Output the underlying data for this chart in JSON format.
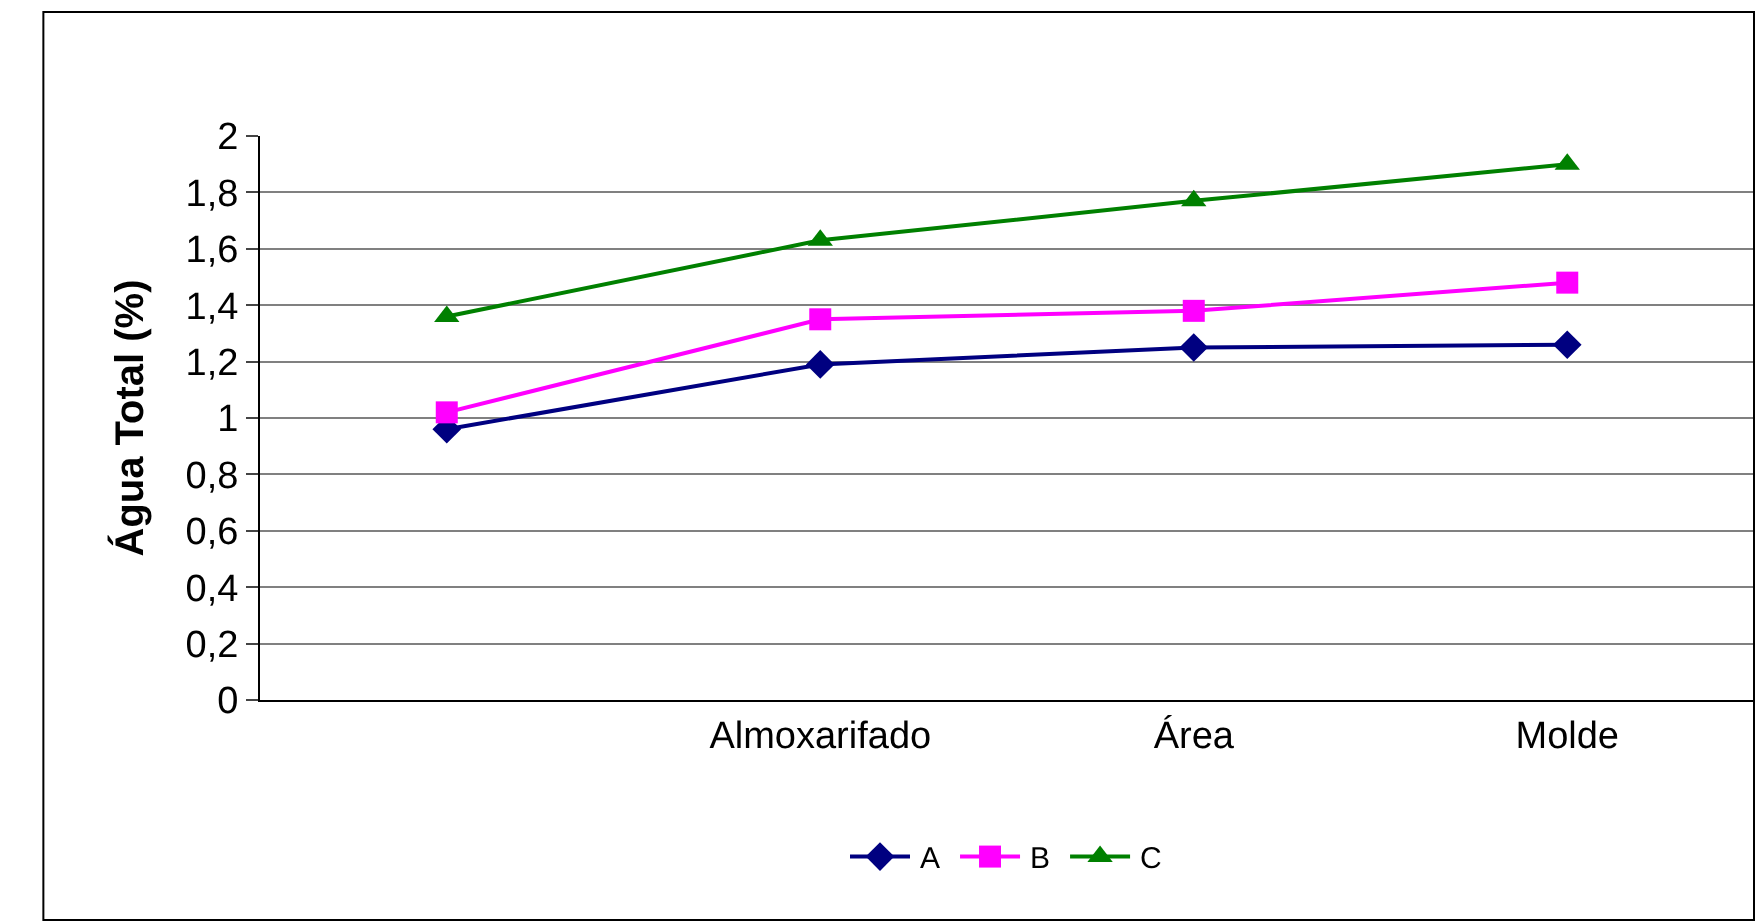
{
  "chart_data": {
    "type": "line",
    "ylabel": "Água Total (%)",
    "categories": [
      null,
      "Almoxarifado",
      "Área",
      "Molde"
    ],
    "series": [
      {
        "name": "A",
        "color": "#000080",
        "marker": "diamond",
        "values": [
          0.96,
          1.19,
          1.25,
          1.26
        ]
      },
      {
        "name": "B",
        "color": "#ff00ff",
        "marker": "square",
        "values": [
          1.02,
          1.35,
          1.38,
          1.48
        ]
      },
      {
        "name": "C",
        "color": "#008000",
        "marker": "triangle",
        "values": [
          1.36,
          1.63,
          1.77,
          1.9
        ]
      }
    ],
    "ylim": [
      0,
      2
    ],
    "yticks": [
      0,
      {
        "value": 0.2,
        "label": "0,2"
      },
      {
        "value": 0.4,
        "label": "0,4"
      },
      {
        "value": 0.6,
        "label": "0,6"
      },
      {
        "value": 0.8,
        "label": "0,8"
      },
      1,
      {
        "value": 1.2,
        "label": "1,2"
      },
      {
        "value": 1.4,
        "label": "1,4"
      },
      {
        "value": 1.6,
        "label": "1,6"
      },
      {
        "value": 1.8,
        "label": "1,8"
      },
      2
    ],
    "grid": "y",
    "legend": "bottom",
    "line_style": "solid"
  }
}
